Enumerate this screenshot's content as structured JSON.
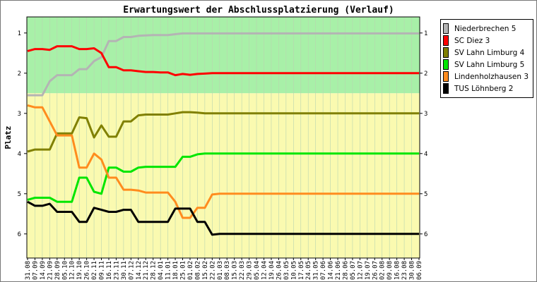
{
  "chart_data": {
    "type": "line",
    "title": "Erwartungswert der Abschlussplatzierung (Verlauf)",
    "ylabel": "Platz",
    "xlabel": "",
    "ylim": [
      0.6,
      6.6
    ],
    "y_reversed": true,
    "yticks": [
      "1",
      "2",
      "3",
      "4",
      "5",
      "6"
    ],
    "grid": "vertical",
    "legend_position": "right",
    "bands": [
      {
        "from": 0.6,
        "to": 2.5,
        "color": "#a8f0a8"
      },
      {
        "from": 2.5,
        "to": 6.6,
        "color": "#fafab0"
      }
    ],
    "x": [
      "31.08",
      "07.09",
      "14.09",
      "21.09",
      "28.09",
      "05.10",
      "12.10",
      "19.10",
      "26.10",
      "02.11",
      "09.11",
      "16.11",
      "23.11",
      "30.11",
      "07.12",
      "14.12",
      "21.12",
      "28.12",
      "04.01",
      "11.01",
      "18.01",
      "25.01",
      "01.02",
      "08.02",
      "15.02",
      "22.02",
      "01.03",
      "08.03",
      "15.03",
      "22.03",
      "29.03",
      "05.04",
      "12.04",
      "19.04",
      "26.04",
      "03.05",
      "10.05",
      "17.05",
      "24.05",
      "31.05",
      "07.06",
      "14.06",
      "21.06",
      "28.06",
      "05.07",
      "12.07",
      "19.07",
      "26.07",
      "02.08",
      "09.08",
      "16.08",
      "23.08",
      "30.08",
      "06.09"
    ],
    "series": [
      {
        "name": "Niederbrechen 5",
        "color": "#b4b4b4",
        "values": [
          2.55,
          2.55,
          2.55,
          2.2,
          2.05,
          2.05,
          2.05,
          1.9,
          1.9,
          1.7,
          1.6,
          1.2,
          1.2,
          1.1,
          1.1,
          1.07,
          1.06,
          1.05,
          1.05,
          1.05,
          1.03,
          1.01,
          1.01,
          1.01,
          1.01,
          1.01,
          1.01,
          1.01,
          1.01,
          1.01,
          1.01,
          1.01,
          1.01,
          1.01,
          1.01,
          1.01,
          1.01,
          1.01,
          1.01,
          1.01,
          1.01,
          1.01,
          1.01,
          1.01,
          1.01,
          1.01,
          1.01,
          1.01,
          1.01,
          1.01,
          1.01,
          1.01,
          1.01,
          1.01
        ]
      },
      {
        "name": "SC Diez 3",
        "color": "#ff0000",
        "values": [
          1.45,
          1.4,
          1.4,
          1.42,
          1.33,
          1.33,
          1.33,
          1.4,
          1.4,
          1.38,
          1.5,
          1.85,
          1.85,
          1.93,
          1.93,
          1.95,
          1.97,
          1.97,
          1.98,
          1.98,
          2.05,
          2.02,
          2.04,
          2.02,
          2.01,
          2.0,
          2.0,
          2.0,
          2.0,
          2.0,
          2.0,
          2.0,
          2.0,
          2.0,
          2.0,
          2.0,
          2.0,
          2.0,
          2.0,
          2.0,
          2.0,
          2.0,
          2.0,
          2.0,
          2.0,
          2.0,
          2.0,
          2.0,
          2.0,
          2.0,
          2.0,
          2.0,
          2.0,
          2.0
        ]
      },
      {
        "name": "SV Lahn Limburg 4",
        "color": "#808000",
        "values": [
          3.95,
          3.9,
          3.9,
          3.9,
          3.5,
          3.5,
          3.5,
          3.1,
          3.12,
          3.6,
          3.3,
          3.58,
          3.58,
          3.2,
          3.2,
          3.05,
          3.03,
          3.03,
          3.03,
          3.03,
          3.0,
          2.97,
          2.97,
          2.98,
          3.0,
          3.0,
          3.0,
          3.0,
          3.0,
          3.0,
          3.0,
          3.0,
          3.0,
          3.0,
          3.0,
          3.0,
          3.0,
          3.0,
          3.0,
          3.0,
          3.0,
          3.0,
          3.0,
          3.0,
          3.0,
          3.0,
          3.0,
          3.0,
          3.0,
          3.0,
          3.0,
          3.0,
          3.0,
          3.0
        ]
      },
      {
        "name": "SV Lahn Limburg 5",
        "color": "#00e600",
        "values": [
          5.15,
          5.1,
          5.1,
          5.1,
          5.2,
          5.2,
          5.2,
          4.6,
          4.6,
          4.95,
          5.0,
          4.35,
          4.35,
          4.45,
          4.45,
          4.35,
          4.33,
          4.33,
          4.33,
          4.33,
          4.33,
          4.08,
          4.08,
          4.02,
          4.0,
          4.0,
          4.0,
          4.0,
          4.0,
          4.0,
          4.0,
          4.0,
          4.0,
          4.0,
          4.0,
          4.0,
          4.0,
          4.0,
          4.0,
          4.0,
          4.0,
          4.0,
          4.0,
          4.0,
          4.0,
          4.0,
          4.0,
          4.0,
          4.0,
          4.0,
          4.0,
          4.0,
          4.0,
          4.0
        ]
      },
      {
        "name": "Lindenholzhausen 3",
        "color": "#ff8c1e",
        "values": [
          2.8,
          2.85,
          2.85,
          3.2,
          3.55,
          3.55,
          3.55,
          4.35,
          4.35,
          4.0,
          4.15,
          4.6,
          4.6,
          4.9,
          4.9,
          4.92,
          4.97,
          4.97,
          4.97,
          4.97,
          5.2,
          5.6,
          5.6,
          5.35,
          5.35,
          5.02,
          5.0,
          5.0,
          5.0,
          5.0,
          5.0,
          5.0,
          5.0,
          5.0,
          5.0,
          5.0,
          5.0,
          5.0,
          5.0,
          5.0,
          5.0,
          5.0,
          5.0,
          5.0,
          5.0,
          5.0,
          5.0,
          5.0,
          5.0,
          5.0,
          5.0,
          5.0,
          5.0,
          5.0
        ]
      },
      {
        "name": "TUS Löhnberg 2",
        "color": "#000000",
        "values": [
          5.2,
          5.3,
          5.3,
          5.25,
          5.45,
          5.45,
          5.45,
          5.7,
          5.7,
          5.35,
          5.4,
          5.45,
          5.45,
          5.4,
          5.4,
          5.7,
          5.7,
          5.7,
          5.7,
          5.7,
          5.37,
          5.37,
          5.37,
          5.7,
          5.7,
          6.02,
          6.0,
          6.0,
          6.0,
          6.0,
          6.0,
          6.0,
          6.0,
          6.0,
          6.0,
          6.0,
          6.0,
          6.0,
          6.0,
          6.0,
          6.0,
          6.0,
          6.0,
          6.0,
          6.0,
          6.0,
          6.0,
          6.0,
          6.0,
          6.0,
          6.0,
          6.0,
          6.0,
          6.0
        ]
      }
    ]
  }
}
